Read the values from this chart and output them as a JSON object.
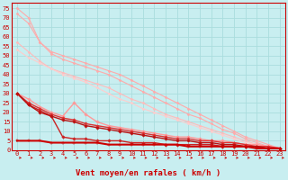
{
  "title": "",
  "xlabel": "Vent moyen/en rafales ( km/h )",
  "ylabel": "",
  "background_color": "#c8eef0",
  "grid_color": "#aadddd",
  "x_ticks": [
    0,
    1,
    2,
    3,
    4,
    5,
    6,
    7,
    8,
    9,
    10,
    11,
    12,
    13,
    14,
    15,
    16,
    17,
    18,
    19,
    20,
    21,
    22,
    23
  ],
  "y_ticks": [
    0,
    5,
    10,
    15,
    20,
    25,
    30,
    35,
    40,
    45,
    50,
    55,
    60,
    65,
    70,
    75
  ],
  "xlim": [
    -0.5,
    23.5
  ],
  "ylim": [
    0,
    78
  ],
  "series": [
    {
      "x": [
        0,
        1,
        2,
        3,
        4,
        5,
        6,
        7,
        8,
        9,
        10,
        11,
        12,
        13,
        14,
        15,
        16,
        17,
        18,
        19,
        20,
        21,
        22,
        23
      ],
      "y": [
        75,
        70,
        57,
        52,
        50,
        48,
        46,
        44,
        42,
        40,
        37,
        34,
        31,
        28,
        25,
        22,
        19,
        16,
        13,
        10,
        7,
        5,
        3,
        1
      ],
      "color": "#ffaaaa",
      "lw": 0.8,
      "marker": "D",
      "ms": 1.5
    },
    {
      "x": [
        0,
        1,
        2,
        3,
        4,
        5,
        6,
        7,
        8,
        9,
        10,
        11,
        12,
        13,
        14,
        15,
        16,
        17,
        18,
        19,
        20,
        21,
        22,
        23
      ],
      "y": [
        72,
        67,
        57,
        51,
        48,
        46,
        44,
        42,
        40,
        37,
        34,
        31,
        28,
        25,
        22,
        19,
        17,
        14,
        11,
        9,
        6,
        4,
        2,
        1
      ],
      "color": "#ffaaaa",
      "lw": 0.8,
      "marker": "D",
      "ms": 1.5
    },
    {
      "x": [
        0,
        1,
        2,
        3,
        4,
        5,
        6,
        7,
        8,
        9,
        10,
        11,
        12,
        13,
        14,
        15,
        16,
        17,
        18,
        19,
        20,
        21,
        22,
        23
      ],
      "y": [
        57,
        52,
        47,
        43,
        41,
        39,
        37,
        35,
        33,
        30,
        27,
        25,
        22,
        19,
        17,
        15,
        13,
        11,
        9,
        7,
        5,
        3,
        2,
        1
      ],
      "color": "#ffbbbb",
      "lw": 0.8,
      "marker": "D",
      "ms": 1.5
    },
    {
      "x": [
        0,
        1,
        2,
        3,
        4,
        5,
        6,
        7,
        8,
        9,
        10,
        11,
        12,
        13,
        14,
        15,
        16,
        17,
        18,
        19,
        20,
        21,
        22,
        23
      ],
      "y": [
        53,
        49,
        46,
        43,
        40,
        38,
        36,
        33,
        30,
        27,
        25,
        22,
        20,
        18,
        16,
        14,
        12,
        10,
        8,
        6,
        4,
        3,
        2,
        1
      ],
      "color": "#ffcccc",
      "lw": 0.8,
      "marker": "D",
      "ms": 1.5
    },
    {
      "x": [
        0,
        1,
        2,
        3,
        4,
        5,
        6,
        7,
        8,
        9,
        10,
        11,
        12,
        13,
        14,
        15,
        16,
        17,
        18,
        19,
        20,
        21,
        22,
        23
      ],
      "y": [
        30,
        27,
        23,
        20,
        18,
        25,
        19,
        15,
        13,
        12,
        11,
        10,
        9,
        8,
        7,
        7,
        6,
        5,
        5,
        4,
        3,
        3,
        2,
        1
      ],
      "color": "#ff9999",
      "lw": 1.0,
      "marker": "D",
      "ms": 1.8
    },
    {
      "x": [
        0,
        1,
        2,
        3,
        4,
        5,
        6,
        7,
        8,
        9,
        10,
        11,
        12,
        13,
        14,
        15,
        16,
        17,
        18,
        19,
        20,
        21,
        22,
        23
      ],
      "y": [
        30,
        25,
        22,
        19,
        17,
        16,
        14,
        13,
        12,
        11,
        10,
        9,
        8,
        7,
        6,
        6,
        5,
        5,
        4,
        4,
        3,
        2,
        2,
        1
      ],
      "color": "#dd3333",
      "lw": 1.0,
      "marker": "D",
      "ms": 1.8
    },
    {
      "x": [
        0,
        1,
        2,
        3,
        4,
        5,
        6,
        7,
        8,
        9,
        10,
        11,
        12,
        13,
        14,
        15,
        16,
        17,
        18,
        19,
        20,
        21,
        22,
        23
      ],
      "y": [
        30,
        24,
        21,
        18,
        7,
        6,
        6,
        5,
        5,
        5,
        4,
        4,
        4,
        3,
        3,
        3,
        3,
        3,
        2,
        2,
        2,
        2,
        1,
        1
      ],
      "color": "#cc2222",
      "lw": 1.0,
      "marker": "D",
      "ms": 1.8
    },
    {
      "x": [
        0,
        1,
        2,
        3,
        4,
        5,
        6,
        7,
        8,
        9,
        10,
        11,
        12,
        13,
        14,
        15,
        16,
        17,
        18,
        19,
        20,
        21,
        22,
        23
      ],
      "y": [
        30,
        24,
        20,
        18,
        16,
        15,
        13,
        12,
        11,
        10,
        9,
        8,
        7,
        6,
        5,
        5,
        4,
        4,
        3,
        3,
        2,
        2,
        1,
        1
      ],
      "color": "#bb1111",
      "lw": 1.0,
      "marker": "D",
      "ms": 1.8
    },
    {
      "x": [
        0,
        1,
        2,
        3,
        4,
        5,
        6,
        7,
        8,
        9,
        10,
        11,
        12,
        13,
        14,
        15,
        16,
        17,
        18,
        19,
        20,
        21,
        22,
        23
      ],
      "y": [
        5,
        5,
        5,
        4,
        4,
        4,
        4,
        4,
        3,
        3,
        3,
        3,
        3,
        3,
        3,
        2,
        2,
        2,
        2,
        2,
        2,
        1,
        1,
        1
      ],
      "color": "#cc0000",
      "lw": 1.5,
      "marker": "+",
      "ms": 3
    }
  ],
  "tick_label_color": "#cc0000",
  "tick_label_fontsize": 5.0,
  "xlabel_fontsize": 6.5,
  "xlabel_color": "#cc0000",
  "arrow_color": "#cc0000"
}
